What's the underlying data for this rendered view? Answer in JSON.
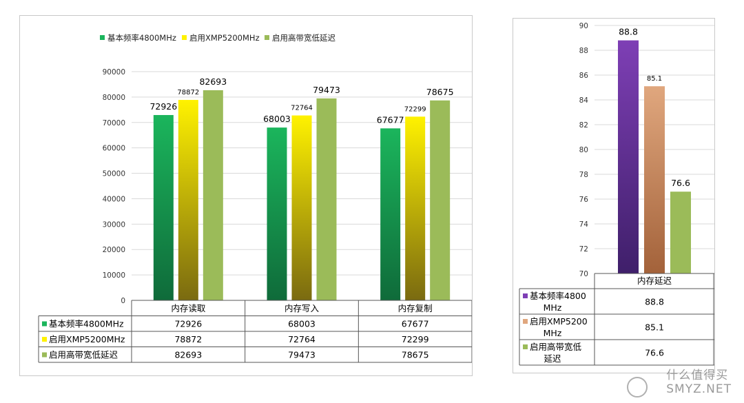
{
  "chart_data": [
    {
      "type": "bar",
      "categories": [
        "内存读取",
        "内存写入",
        "内存复制"
      ],
      "series": [
        {
          "name": "基本频率4800MHz",
          "values": [
            72926,
            68003,
            67677
          ],
          "color": "#1bb55c",
          "color_dark": "#0f6b3a",
          "labels": [
            "72926",
            "68003",
            "67677"
          ]
        },
        {
          "name": "启用XMP5200MHz",
          "values": [
            78872,
            72764,
            72299
          ],
          "color": "#fff200",
          "color_dark": "#7a6a10",
          "labels": [
            "78872",
            "72764",
            "72299"
          ]
        },
        {
          "name": "启用高带宽低延迟",
          "values": [
            82693,
            79473,
            78675
          ],
          "color": "#9bbb59",
          "color_dark": "#9bbb59",
          "labels": [
            "82693",
            "79473",
            "78675"
          ]
        }
      ],
      "yticks": [
        "0",
        "10000",
        "20000",
        "30000",
        "40000",
        "50000",
        "60000",
        "70000",
        "80000",
        "90000"
      ],
      "ylim": [
        0,
        90000
      ],
      "legend_position": "top",
      "grid": true,
      "data_table": true
    },
    {
      "type": "bar",
      "categories": [
        "内存延迟"
      ],
      "series": [
        {
          "name": "基本频率4800",
          "name2": "MHz",
          "values": [
            88.8
          ],
          "color": "#7e3fb5",
          "color_dark": "#3f1f6a",
          "labels": [
            "88.8"
          ]
        },
        {
          "name": "启用XMP5200",
          "name2": "MHz",
          "values": [
            85.1
          ],
          "color": "#e0a77e",
          "color_dark": "#a3623a",
          "labels": [
            "85.1"
          ]
        },
        {
          "name": "启用高带宽低",
          "name2": "延迟",
          "values": [
            76.6
          ],
          "color": "#9bbb59",
          "color_dark": "#9bbb59",
          "labels": [
            "76.6"
          ]
        }
      ],
      "yticks": [
        "70",
        "72",
        "74",
        "76",
        "78",
        "80",
        "82",
        "84",
        "86",
        "88",
        "90"
      ],
      "ylim": [
        70,
        90
      ],
      "grid": true,
      "data_table": true
    }
  ],
  "watermark": {
    "text": "什么值得买",
    "sub": "SMYZ.NET"
  }
}
